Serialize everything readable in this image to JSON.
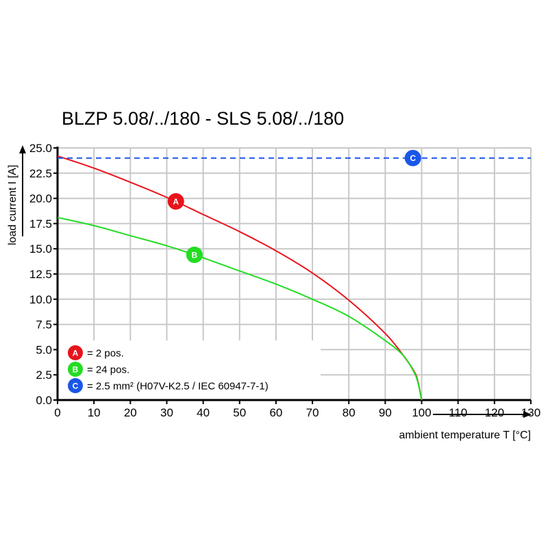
{
  "chart_data": {
    "type": "line",
    "title": "BLZP 5.08/../180 - SLS 5.08/../180",
    "xlabel": "ambient temperature T [°C]",
    "ylabel": "load current I [A]",
    "xlim": [
      0,
      130
    ],
    "ylim": [
      0,
      25
    ],
    "xticks": [
      "0",
      "10",
      "20",
      "30",
      "40",
      "50",
      "60",
      "70",
      "80",
      "90",
      "100",
      "110",
      "120",
      "130"
    ],
    "yticks": [
      "0.0",
      "2.5",
      "5.0",
      "7.5",
      "10.0",
      "12.5",
      "15.0",
      "17.5",
      "20.0",
      "22.5",
      "25.0"
    ],
    "grid": true,
    "series": [
      {
        "marker": "A",
        "name": "= 2 pos.",
        "color": "#e8141b",
        "style": "solid",
        "x": [
          0,
          10,
          20,
          30,
          40,
          50,
          60,
          70,
          80,
          90,
          95,
          98,
          99,
          100
        ],
        "y": [
          24.2,
          23.0,
          21.6,
          20.1,
          18.4,
          16.7,
          14.8,
          12.6,
          9.9,
          6.6,
          4.4,
          2.8,
          1.8,
          0
        ],
        "marker_at": [
          32.5,
          19.7
        ]
      },
      {
        "marker": "B",
        "name": "= 24 pos.",
        "color": "#22dd22",
        "style": "solid",
        "x": [
          0,
          10,
          20,
          30,
          40,
          50,
          60,
          70,
          80,
          90,
          95,
          98,
          99,
          100
        ],
        "y": [
          18.1,
          17.3,
          16.3,
          15.3,
          14.1,
          12.8,
          11.5,
          10.0,
          8.3,
          5.9,
          4.4,
          2.7,
          1.7,
          0
        ],
        "marker_at": [
          37.6,
          14.4
        ]
      },
      {
        "marker": "C",
        "name": "= 2.5 mm² (H07V-K2.5 / IEC 60947-7-1)",
        "color": "#1a56e8",
        "style": "dashed",
        "x": [
          0,
          130
        ],
        "y": [
          24.0,
          24.0
        ],
        "marker_at": [
          97.6,
          24.0
        ]
      }
    ],
    "legend": "bottom-left"
  }
}
